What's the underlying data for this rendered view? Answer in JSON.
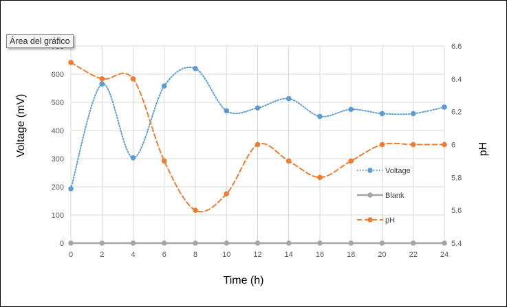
{
  "tooltip": "Área del gráfico",
  "chart_data": {
    "type": "line",
    "title": "",
    "xlabel": "Time (h)",
    "ylabel": "Voltage (mV)",
    "y2label": "pH",
    "x": [
      0,
      2,
      4,
      6,
      8,
      10,
      12,
      14,
      16,
      18,
      20,
      22,
      24
    ],
    "xlim": [
      0,
      24
    ],
    "ylim": [
      0,
      700
    ],
    "y2lim": [
      5.4,
      6.6
    ],
    "yticks": [
      0,
      100,
      200,
      300,
      400,
      500,
      600,
      700
    ],
    "y2ticks": [
      "5.4",
      "5.6",
      "5.8",
      "6",
      "6.2",
      "6.4",
      "6.6"
    ],
    "grid": true,
    "legend_position": "right",
    "series": [
      {
        "name": "Voltage",
        "axis": "left",
        "style": "dotted-smooth",
        "color": "#5b9bd5",
        "values": [
          193,
          565,
          303,
          558,
          620,
          470,
          480,
          513,
          450,
          475,
          460,
          460,
          483
        ]
      },
      {
        "name": "Blank",
        "axis": "left",
        "style": "solid",
        "color": "#a5a5a5",
        "values": [
          0,
          0,
          0,
          0,
          0,
          0,
          0,
          0,
          0,
          0,
          0,
          0,
          0
        ]
      },
      {
        "name": "pH",
        "axis": "right",
        "style": "dashed-smooth",
        "color": "#ed7d31",
        "values": [
          6.5,
          6.4,
          6.4,
          5.9,
          5.6,
          5.7,
          6.0,
          5.9,
          5.8,
          5.9,
          6.0,
          6.0,
          6.0
        ]
      }
    ]
  }
}
